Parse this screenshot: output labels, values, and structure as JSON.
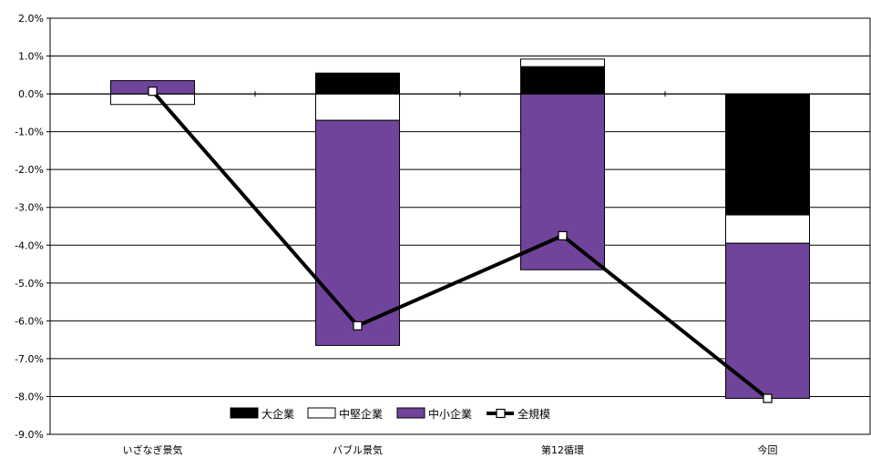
{
  "chart_data": {
    "type": "bar",
    "stacked": true,
    "categories": [
      "いざなぎ景気",
      "バブル景気",
      "第12循環",
      "今回"
    ],
    "ylim": [
      -9.0,
      2.0
    ],
    "ytick_step": 1.0,
    "ytick_labels": [
      "2.0%",
      "1.0%",
      "0.0%",
      "-1.0%",
      "-2.0%",
      "-3.0%",
      "-4.0%",
      "-5.0%",
      "-6.0%",
      "-7.0%",
      "-8.0%",
      "-9.0%"
    ],
    "grid": true,
    "legend_position": "bottom-center",
    "series": [
      {
        "name": "大企業",
        "kind": "bar",
        "color": "#000000",
        "values": [
          0.0,
          0.55,
          0.72,
          -3.2
        ]
      },
      {
        "name": "中堅企業",
        "kind": "bar",
        "color": "#ffffff",
        "values": [
          -0.28,
          -0.7,
          0.2,
          -0.75
        ]
      },
      {
        "name": "中小企業",
        "kind": "bar",
        "color": "#71449b",
        "values": [
          0.35,
          -5.95,
          -4.65,
          -4.1
        ]
      },
      {
        "name": "全規模",
        "kind": "line",
        "color": "#000000",
        "values": [
          0.07,
          -6.13,
          -3.75,
          -8.05
        ]
      }
    ]
  }
}
